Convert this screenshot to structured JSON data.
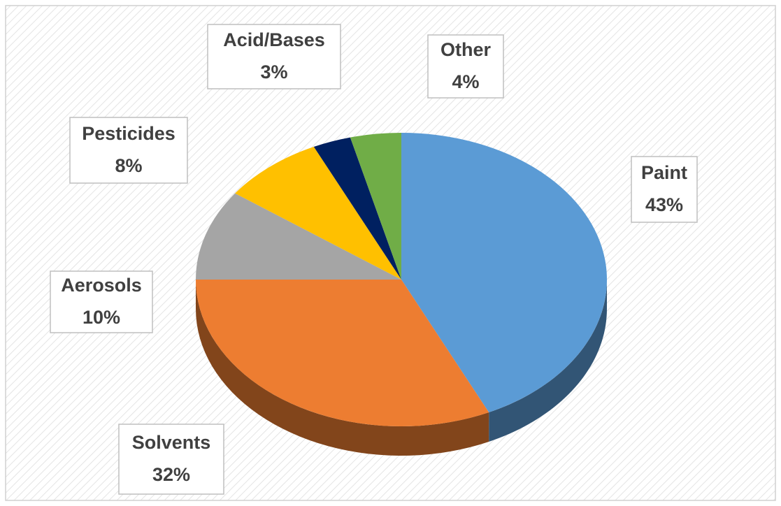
{
  "chart_data": {
    "type": "pie",
    "categories": [
      "Paint",
      "Solvents",
      "Aerosols",
      "Pesticides",
      "Acid/Bases",
      "Other"
    ],
    "values": [
      43,
      32,
      10,
      8,
      3,
      4
    ],
    "value_labels": [
      "43%",
      "32%",
      "10%",
      "8%",
      "3%",
      "4%"
    ],
    "colors": [
      "#5b9bd5",
      "#ed7d31",
      "#a5a5a5",
      "#ffc000",
      "#002060",
      "#70ad47"
    ]
  }
}
